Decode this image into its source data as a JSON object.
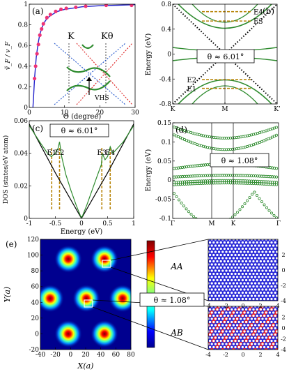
{
  "chart_data": [
    {
      "panel": "(a)",
      "type": "line+scatter",
      "xlabel": "Θ (degree)",
      "ylabel": "ṽ_F / v_F",
      "xlim": [
        0,
        30
      ],
      "ylim": [
        0,
        1
      ],
      "x_ticks": [
        "0",
        "10",
        "20",
        "30"
      ],
      "y_ticks": [
        "0",
        "0.2",
        "0.4",
        "0.6",
        "0.8",
        "1"
      ],
      "series": [
        {
          "style": "line",
          "color": "#2222cc",
          "x": [
            1.05,
            1.2,
            1.5,
            2,
            2.5,
            3,
            4,
            5,
            6,
            8,
            10,
            12,
            15,
            20,
            25,
            30
          ],
          "y": [
            0.0,
            0.09,
            0.28,
            0.49,
            0.62,
            0.71,
            0.81,
            0.86,
            0.89,
            0.93,
            0.95,
            0.96,
            0.975,
            0.985,
            0.99,
            0.995
          ]
        },
        {
          "style": "points",
          "color": "#ee3377",
          "x": [
            1.5,
            1.8,
            2.2,
            2.6,
            3.0,
            3.5,
            4.0,
            5.0,
            6.0,
            7.5,
            9.0,
            10.5,
            13.2,
            16.0,
            21.8,
            29.0
          ],
          "y": [
            0.28,
            0.4,
            0.52,
            0.61,
            0.7,
            0.76,
            0.81,
            0.87,
            0.9,
            0.93,
            0.95,
            0.96,
            0.97,
            0.98,
            0.99,
            0.99
          ]
        }
      ],
      "inset": {
        "labels": [
          "K",
          "Kθ",
          "VHS"
        ]
      }
    },
    {
      "panel": "(b)",
      "type": "line",
      "ylabel": "Energy (eV)",
      "ylim": [
        -0.8,
        0.8
      ],
      "y_ticks": [
        "-0.8",
        "-0.4",
        "0",
        "0.4",
        "0.8"
      ],
      "x_ticks": [
        "K",
        "M",
        "K’"
      ],
      "annotation": "θ ≈ 6.01°",
      "levels": [
        {
          "name": "E4",
          "energy": 0.68
        },
        {
          "name": "E3",
          "energy": 0.53
        },
        {
          "name": "E2",
          "energy": -0.41
        },
        {
          "name": "E1",
          "energy": -0.55
        }
      ],
      "series": [
        {
          "name": "green bands",
          "color": "#2e8b2e"
        },
        {
          "name": "dotted cones",
          "color": "#000000"
        }
      ]
    },
    {
      "panel": "(c)",
      "type": "line",
      "xlabel": "Energy (eV)",
      "ylabel": "DOS (states/eV atom)",
      "xlim": [
        -1,
        1
      ],
      "ylim": [
        0,
        0.06
      ],
      "x_ticks": [
        "-1",
        "-0.5",
        "0",
        "0.5",
        "1"
      ],
      "y_ticks": [
        "0",
        "0.02",
        "0.04",
        "0.06"
      ],
      "annotation": "θ ≈ 6.01°",
      "levels": [
        {
          "name": "E1",
          "energy": -0.57
        },
        {
          "name": "E2",
          "energy": -0.42
        },
        {
          "name": "E3",
          "energy": 0.39
        },
        {
          "name": "E4",
          "energy": 0.55
        }
      ],
      "series": [
        {
          "name": "tBLG",
          "color": "#2e8b2e",
          "x": [
            -1.0,
            -0.8,
            -0.65,
            -0.58,
            -0.5,
            -0.45,
            -0.42,
            -0.38,
            -0.3,
            -0.2,
            -0.1,
            0.0,
            0.1,
            0.2,
            0.3,
            0.38,
            0.4,
            0.45,
            0.5,
            0.55,
            0.6,
            0.8,
            1.0
          ],
          "y": [
            0.057,
            0.047,
            0.04,
            0.038,
            0.04,
            0.043,
            0.047,
            0.038,
            0.027,
            0.017,
            0.008,
            0.0,
            0.008,
            0.017,
            0.026,
            0.033,
            0.04,
            0.036,
            0.038,
            0.044,
            0.04,
            0.047,
            0.057
          ]
        },
        {
          "name": "graphene",
          "color": "#000000",
          "x": [
            -1.0,
            -0.5,
            0.0,
            0.5,
            1.0
          ],
          "y": [
            0.058,
            0.028,
            0.0,
            0.028,
            0.058
          ]
        }
      ]
    },
    {
      "panel": "(d)",
      "type": "scatter",
      "ylabel": "Energy (eV)",
      "ylim": [
        -0.1,
        0.15
      ],
      "y_ticks": [
        "-0.1",
        "-0.05",
        "0",
        "0.05",
        "0.1",
        "0.15"
      ],
      "x_ticks": [
        "Γ",
        "M",
        "K",
        "Γ"
      ],
      "annotation": "θ ≈ 1.08°",
      "series": [
        {
          "name": "flat bands",
          "color": "#2e8b2e"
        }
      ]
    },
    {
      "panel": "(e)",
      "type": "heatmap",
      "xlabel": "X(a)",
      "ylabel": "Y(a)",
      "xlim": [
        -40,
        90
      ],
      "ylim": [
        -20,
        120
      ],
      "x_ticks": [
        "-40",
        "-20",
        "0",
        "20",
        "40",
        "60",
        "80"
      ],
      "y_ticks": [
        "-20",
        "0",
        "20",
        "40",
        "60",
        "80",
        "100",
        "120"
      ],
      "hotspots": [
        {
          "x": 0,
          "y": 95
        },
        {
          "x": 52,
          "y": 95
        },
        {
          "x": -26,
          "y": 45
        },
        {
          "x": 26,
          "y": 45
        },
        {
          "x": 78,
          "y": 45
        },
        {
          "x": 0,
          "y": 0
        },
        {
          "x": 52,
          "y": 0
        }
      ],
      "annotation": "θ ≈ 1.08°",
      "insets": [
        {
          "label": "AA",
          "xlim": [
            -4,
            4
          ],
          "ylim": [
            -4,
            4
          ],
          "x_ticks": [
            "-4",
            "-2",
            "0",
            "2",
            "4"
          ],
          "y_ticks": [
            "-4",
            "-2",
            "0",
            "2"
          ]
        },
        {
          "label": "AB",
          "xlim": [
            -4,
            4
          ],
          "ylim": [
            -4,
            4
          ],
          "x_ticks": [
            "-4",
            "-2",
            "0",
            "2",
            "4"
          ],
          "y_ticks": [
            "-4",
            "-2",
            "0",
            "2"
          ]
        }
      ],
      "colors": {
        "low": "#00008f",
        "high": "#800000"
      }
    }
  ]
}
